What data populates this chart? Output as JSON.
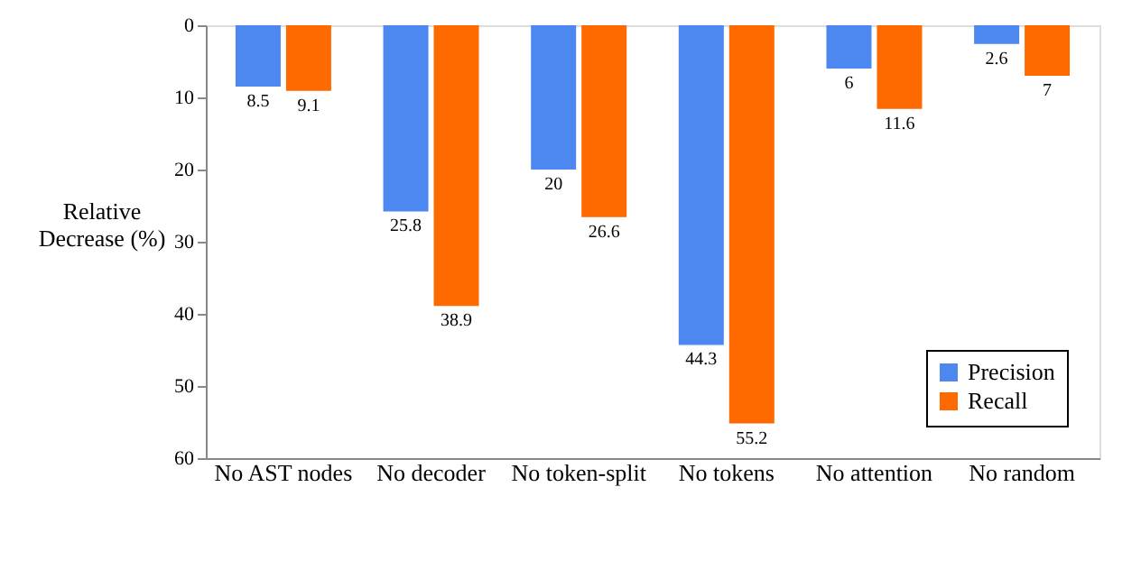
{
  "chart_data": {
    "type": "bar",
    "ylabel": "Relative Decrease (%)",
    "categories": [
      "No AST nodes",
      "No decoder",
      "No token-split",
      "No tokens",
      "No attention",
      "No random"
    ],
    "series": [
      {
        "name": "Precision",
        "color": "#4d88f0",
        "values": [
          8.5,
          25.8,
          20,
          44.3,
          6,
          2.6
        ]
      },
      {
        "name": "Recall",
        "color": "#ff6a00",
        "values": [
          9.1,
          38.9,
          26.6,
          55.2,
          11.6,
          7
        ]
      }
    ],
    "ylim": [
      60,
      0
    ],
    "yticks": [
      0,
      10,
      20,
      30,
      40,
      50,
      60
    ],
    "data_labels": true,
    "grid": false,
    "legend": "bottom right"
  }
}
